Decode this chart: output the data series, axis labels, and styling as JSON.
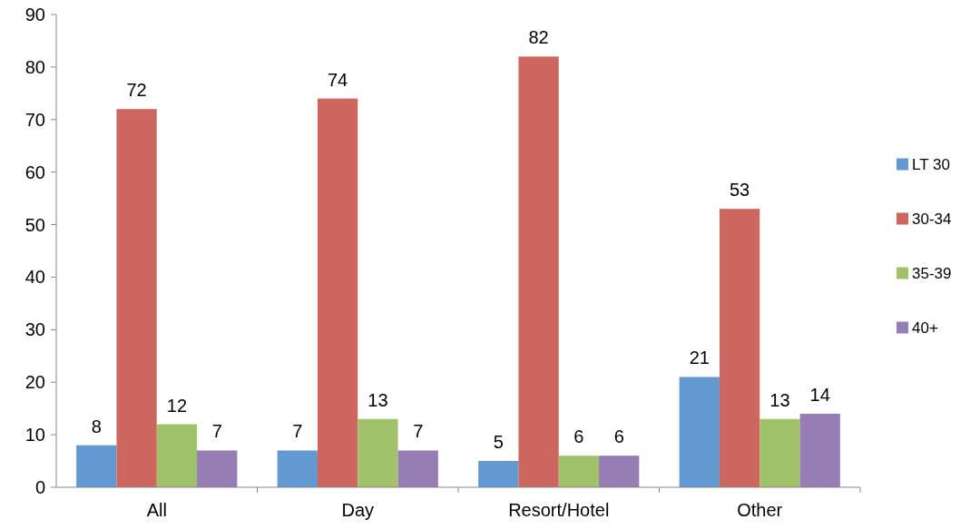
{
  "chart_data": {
    "type": "bar",
    "categories": [
      "All",
      "Day",
      "Resort/Hotel",
      "Other"
    ],
    "series": [
      {
        "name": "LT 30",
        "color": "#6299d0",
        "values": [
          8,
          7,
          5,
          21
        ]
      },
      {
        "name": "30-34",
        "color": "#cd665f",
        "values": [
          72,
          74,
          82,
          53
        ]
      },
      {
        "name": "35-39",
        "color": "#a2c26a",
        "values": [
          12,
          13,
          6,
          13
        ]
      },
      {
        "name": "40+",
        "color": "#967db6",
        "values": [
          7,
          7,
          6,
          14
        ]
      }
    ],
    "ylim": [
      0,
      90
    ],
    "yticks": [
      0,
      10,
      20,
      30,
      40,
      50,
      60,
      70,
      80,
      90
    ],
    "data_labels": true,
    "legend": "right",
    "grid": false
  }
}
